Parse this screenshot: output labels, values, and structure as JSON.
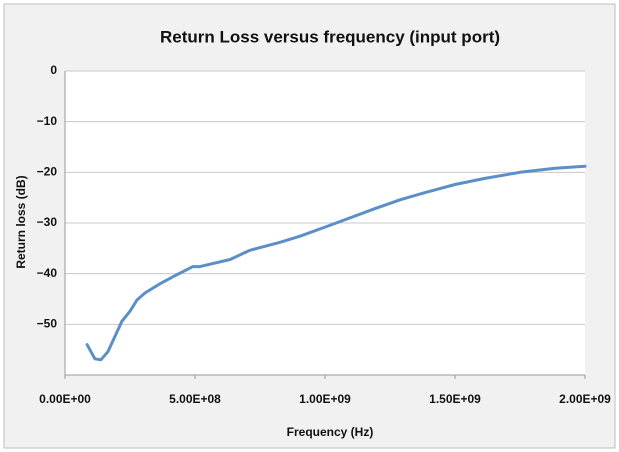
{
  "chart_data": {
    "type": "line",
    "title": "Return Loss versus frequency (input port)",
    "xlabel": "Frequency (Hz)",
    "ylabel": "Return loss (dB)",
    "color": "#5b8fc7",
    "x": [
      85000000,
      115000000,
      138000000,
      165000000,
      192000000,
      219000000,
      250000000,
      277000000,
      308000000,
      365000000,
      423000000,
      492000000,
      519000000,
      635000000,
      710000000,
      827000000,
      904000000,
      1000000000,
      1096000000,
      1190000000,
      1290000000,
      1385000000,
      1500000000,
      1615000000,
      1750000000,
      1885000000,
      2000000000
    ],
    "values": [
      -54,
      -56.8,
      -57,
      -55.4,
      -52.4,
      -49.4,
      -47.4,
      -45.2,
      -43.8,
      -42,
      -40.4,
      -38.6,
      -38.6,
      -37.2,
      -35.4,
      -33.8,
      -32.6,
      -30.8,
      -29,
      -27.2,
      -25.4,
      -24,
      -22.4,
      -21.2,
      -20,
      -19.2,
      -18.8
    ],
    "xlim": [
      0,
      2000000000
    ],
    "xticks": [
      {
        "value": 0,
        "label": "0.00E+00"
      },
      {
        "value": 500000000,
        "label": "5.00E+08"
      },
      {
        "value": 1000000000,
        "label": "1.00E+09"
      },
      {
        "value": 1500000000,
        "label": "1.50E+09"
      },
      {
        "value": 2000000000,
        "label": "2.00E+09"
      }
    ],
    "ylim": [
      -60,
      0
    ],
    "yticks": [
      0,
      {
        "value": -10,
        "label": "−10"
      },
      {
        "value": -20,
        "label": "−20"
      },
      {
        "value": -30,
        "label": "−30"
      },
      {
        "value": -40,
        "label": "−40"
      },
      {
        "value": -50,
        "label": "−50"
      }
    ],
    "grid": true
  }
}
